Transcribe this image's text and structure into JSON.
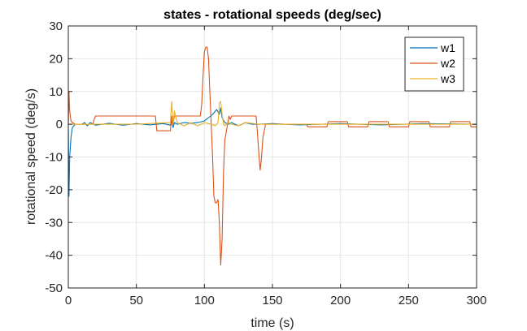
{
  "chart_data": {
    "type": "line",
    "title": "states - rotational speeds (deg/sec)",
    "xlabel": "time (s)",
    "ylabel": "rotational speed (deg/s)",
    "xlim": [
      0,
      300
    ],
    "ylim": [
      -50,
      30
    ],
    "xticks": [
      0,
      50,
      100,
      150,
      200,
      250,
      300
    ],
    "yticks": [
      -50,
      -40,
      -30,
      -20,
      -10,
      0,
      10,
      20,
      30
    ],
    "x_tick_labels": [
      "0",
      "50",
      "100",
      "150",
      "200",
      "250",
      "300"
    ],
    "y_tick_labels": [
      "-50",
      "-40",
      "-30",
      "-20",
      "-10",
      "0",
      "10",
      "20",
      "30"
    ],
    "grid": true,
    "legend_position": "top-right",
    "colors": {
      "w1": "#0072BD",
      "w2": "#D95319",
      "w3": "#EDB120",
      "grid": "#e6e6e6",
      "axis": "#262626"
    },
    "series": [
      {
        "name": "w1",
        "x": [
          0,
          0.5,
          1,
          2,
          3,
          4,
          5,
          7,
          10,
          12,
          14,
          16,
          20,
          30,
          40,
          50,
          60,
          65,
          70,
          75,
          76,
          77,
          78,
          80,
          85,
          90,
          95,
          100,
          103,
          106,
          109,
          111,
          112,
          113,
          115,
          118,
          120,
          125,
          130,
          135,
          140,
          150,
          170,
          200,
          230,
          260,
          300
        ],
        "y": [
          0,
          -22,
          -10,
          -4,
          -1,
          -0.5,
          0,
          0,
          0,
          0.5,
          -0.5,
          0.5,
          -0.3,
          0.3,
          -0.3,
          0.2,
          -0.2,
          0,
          0.2,
          -0.3,
          1,
          -1,
          0.5,
          0,
          0.5,
          0.3,
          0.5,
          1,
          2,
          3,
          4.5,
          3,
          5,
          2,
          0.5,
          0,
          0.5,
          -0.5,
          0.5,
          0,
          0,
          0.2,
          -0.2,
          0.2,
          -0.2,
          0.2,
          0
        ]
      },
      {
        "name": "w2",
        "x": [
          0,
          0.5,
          1,
          2,
          3,
          5,
          10,
          18,
          19,
          20,
          30,
          40,
          50,
          60,
          64,
          65,
          66,
          70,
          75,
          76,
          77,
          78,
          80,
          90,
          97,
          98,
          99,
          100,
          101,
          102,
          103,
          104,
          105,
          106,
          107,
          108,
          109,
          110,
          111,
          112,
          113,
          114,
          115,
          118,
          119,
          120,
          130,
          138,
          139,
          140,
          141,
          142,
          143,
          145,
          150,
          160,
          175,
          176,
          190,
          191,
          205,
          206,
          220,
          221,
          235,
          236,
          250,
          251,
          265,
          266,
          280,
          281,
          295,
          296,
          300
        ],
        "y": [
          0,
          10,
          4,
          1,
          0.5,
          0,
          0,
          0,
          1.5,
          2.5,
          2.5,
          2.5,
          2.5,
          2.5,
          2.5,
          -2,
          -2,
          -2,
          -2,
          2.5,
          0,
          2.5,
          2.5,
          2.5,
          2.5,
          6,
          15,
          22,
          23.5,
          23.5,
          20,
          10,
          0,
          -10,
          -22,
          -24,
          -24,
          -23,
          -30,
          -43,
          -35,
          -15,
          -5,
          2.5,
          1.5,
          2.5,
          2.5,
          2.5,
          -3,
          -9,
          -14,
          -10,
          -4,
          0,
          0,
          0,
          0,
          -0.8,
          -0.8,
          0.8,
          0.8,
          -0.8,
          -0.8,
          0.8,
          0.8,
          -0.8,
          -0.8,
          0.8,
          0.8,
          -0.8,
          -0.8,
          0.8,
          0.8,
          -0.8,
          -0.8
        ]
      },
      {
        "name": "w3",
        "x": [
          0,
          10,
          50,
          75,
          76,
          77,
          78,
          80,
          85,
          90,
          95,
          100,
          105,
          108,
          110,
          111,
          112,
          113,
          114,
          115,
          118,
          120,
          125,
          130,
          140,
          150,
          175,
          200,
          225,
          250,
          275,
          300
        ],
        "y": [
          0,
          0,
          0,
          0.5,
          7,
          0,
          4,
          0.5,
          -0.5,
          0.5,
          -0.5,
          0.5,
          0,
          -0.5,
          0.5,
          6.5,
          7,
          3,
          0,
          -0.5,
          0.5,
          0,
          -0.5,
          0.5,
          0,
          0,
          0,
          0,
          0,
          0,
          0,
          0
        ]
      }
    ]
  }
}
